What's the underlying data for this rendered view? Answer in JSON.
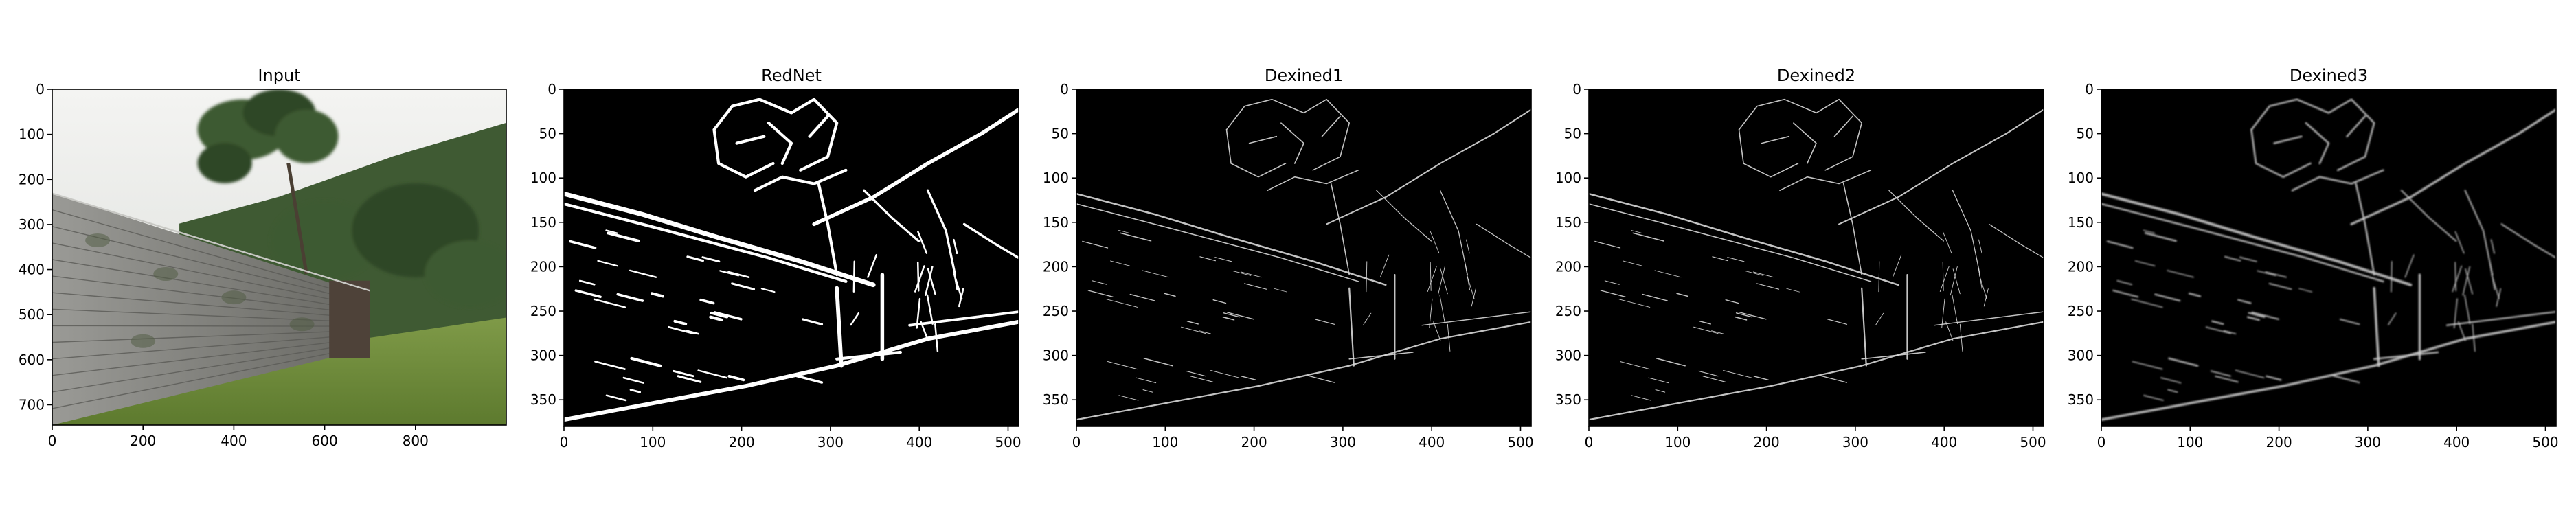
{
  "chart_data": [
    {
      "type": "image",
      "title": "Input",
      "content": "photo",
      "xlim": [
        0,
        1000
      ],
      "ylim": [
        745,
        0
      ],
      "xticks": [
        0,
        200,
        400,
        600,
        800
      ],
      "yticks": [
        0,
        100,
        200,
        300,
        400,
        500,
        600,
        700
      ]
    },
    {
      "type": "image",
      "title": "RedNet",
      "content": "edge-map",
      "style": "binary-thick",
      "xlim": [
        0,
        512
      ],
      "ylim": [
        380,
        0
      ],
      "xticks": [
        0,
        100,
        200,
        300,
        400,
        500
      ],
      "yticks": [
        0,
        50,
        100,
        150,
        200,
        250,
        300,
        350
      ]
    },
    {
      "type": "image",
      "title": "Dexined1",
      "content": "edge-map",
      "style": "thin",
      "xlim": [
        0,
        512
      ],
      "ylim": [
        380,
        0
      ],
      "xticks": [
        0,
        100,
        200,
        300,
        400,
        500
      ],
      "yticks": [
        0,
        50,
        100,
        150,
        200,
        250,
        300,
        350
      ]
    },
    {
      "type": "image",
      "title": "Dexined2",
      "content": "edge-map",
      "style": "thin",
      "xlim": [
        0,
        512
      ],
      "ylim": [
        380,
        0
      ],
      "xticks": [
        0,
        100,
        200,
        300,
        400,
        500
      ],
      "yticks": [
        0,
        50,
        100,
        150,
        200,
        250,
        300,
        350
      ]
    },
    {
      "type": "image",
      "title": "Dexined3",
      "content": "edge-map",
      "style": "soft",
      "xlim": [
        0,
        512
      ],
      "ylim": [
        380,
        0
      ],
      "xticks": [
        0,
        100,
        200,
        300,
        400,
        500
      ],
      "yticks": [
        0,
        50,
        100,
        150,
        200,
        250,
        300,
        350
      ]
    }
  ]
}
